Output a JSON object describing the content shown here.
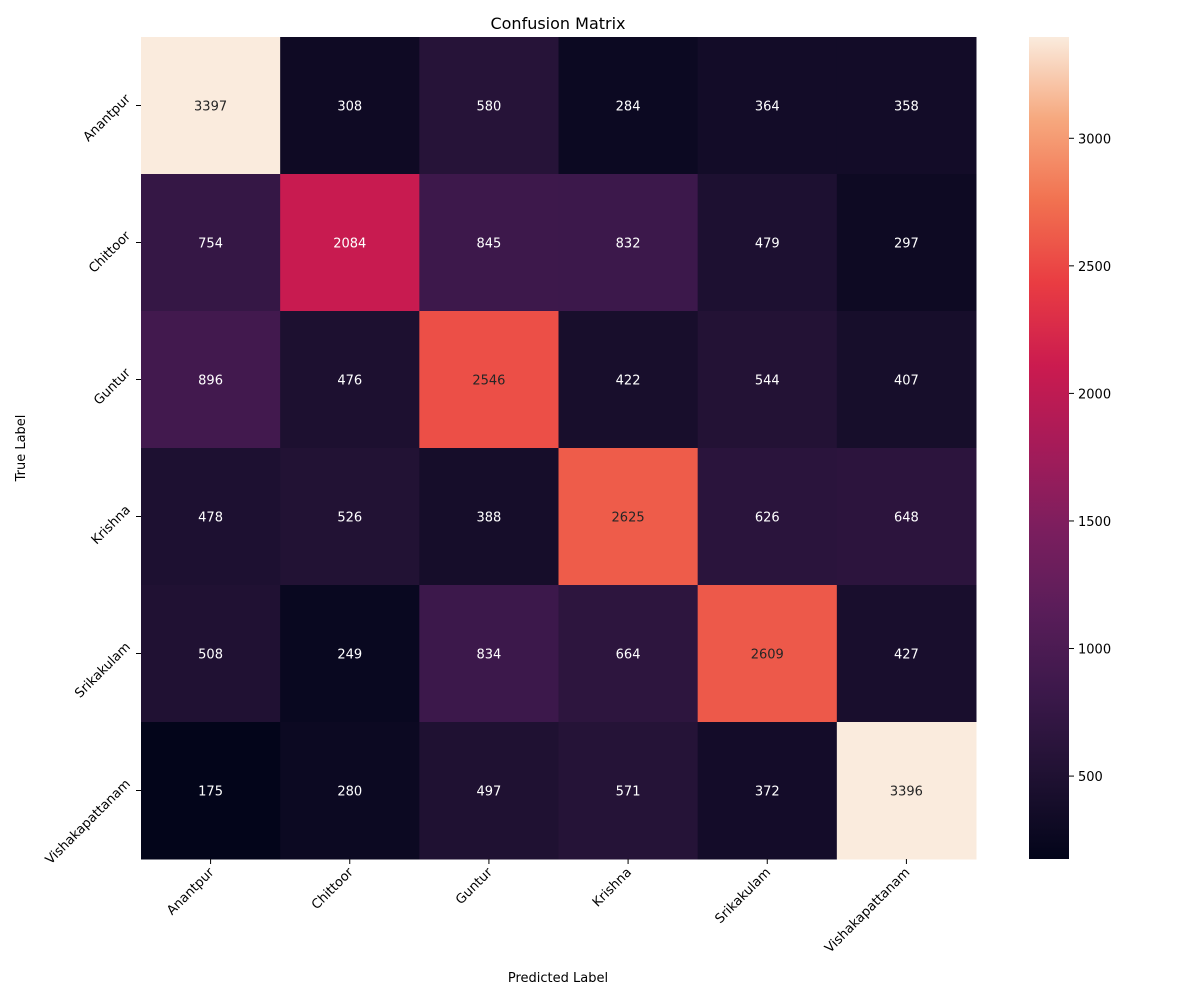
{
  "chart_data": {
    "type": "heatmap",
    "title": "Confusion Matrix",
    "xlabel": "Predicted Label",
    "ylabel": "True Label",
    "x_categories": [
      "Anantpur",
      "Chittoor",
      "Guntur",
      "Krishna",
      "Srikakulam",
      "Vishakapattanam"
    ],
    "y_categories": [
      "Anantpur",
      "Chittoor",
      "Guntur",
      "Krishna",
      "Srikakulam",
      "Vishakapattanam"
    ],
    "values": [
      [
        3397,
        308,
        580,
        284,
        364,
        358
      ],
      [
        754,
        2084,
        845,
        832,
        479,
        297
      ],
      [
        896,
        476,
        2546,
        422,
        544,
        407
      ],
      [
        478,
        526,
        388,
        2625,
        626,
        648
      ],
      [
        508,
        249,
        834,
        664,
        2609,
        427
      ],
      [
        175,
        280,
        497,
        571,
        372,
        3396
      ]
    ],
    "colormap": "rocket",
    "vmin": 175,
    "vmax": 3397,
    "colorbar_ticks": [
      500,
      1000,
      1500,
      2000,
      2500,
      3000
    ],
    "grid": false,
    "colorbar_position": "right"
  }
}
